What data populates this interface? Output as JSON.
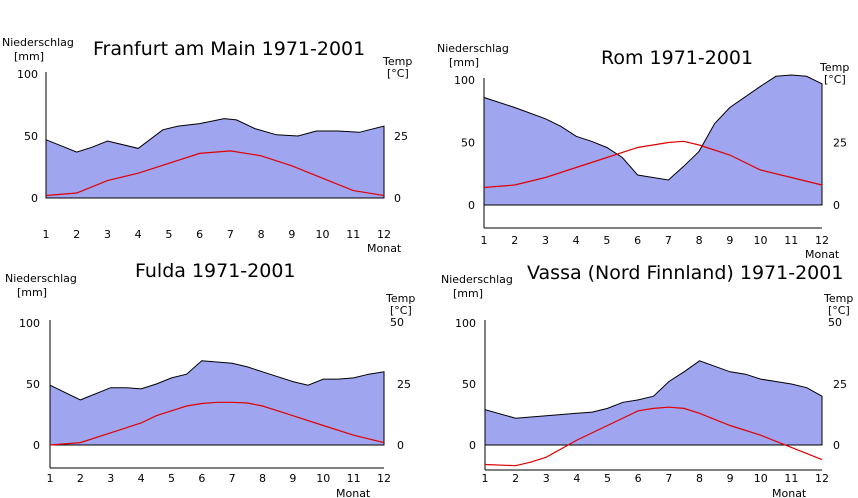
{
  "chart_data": [
    {
      "type": "area",
      "title": "Franfurt am Main  1971-2001",
      "ylabel_left": [
        "Niederschlag",
        "[mm]"
      ],
      "ylabel_right": [
        "Temp",
        "[°C]"
      ],
      "xlabel": "Monat",
      "x_ticks": [
        "1",
        "2",
        "3",
        "4",
        "5",
        "6",
        "7",
        "8",
        "9",
        "10",
        "11",
        "12"
      ],
      "yleft_ticks": [
        "0",
        "50",
        "100"
      ],
      "yright_ticks": [
        "0",
        "25"
      ],
      "yleft_lim": [
        0,
        100
      ],
      "yright_lim": [
        0,
        50
      ],
      "series": [
        {
          "kind": "precipitation",
          "x": [
            1,
            2,
            2.5,
            3,
            4,
            4.8,
            5.3,
            6,
            6.8,
            7.2,
            7.8,
            8.5,
            9.2,
            9.8,
            10.5,
            11.2,
            12
          ],
          "values": [
            47,
            37,
            41,
            46,
            40,
            55,
            58,
            60,
            64,
            63,
            56,
            51,
            50,
            54,
            54,
            53,
            58
          ]
        },
        {
          "kind": "temperature",
          "x": [
            1,
            2,
            3,
            4,
            5,
            6,
            7,
            8,
            9,
            10,
            11,
            12
          ],
          "values": [
            1,
            2,
            7,
            10,
            14,
            18,
            19,
            17,
            13,
            8,
            3,
            1
          ]
        }
      ],
      "colors": {
        "area": "#a0a5f0",
        "temp": "#e00000"
      }
    },
    {
      "type": "area",
      "title": "Rom  1971-2001",
      "ylabel_left": [
        "Niederschlag",
        "[mm]"
      ],
      "ylabel_right": [
        "Temp",
        "[°C]"
      ],
      "xlabel": "Monat",
      "x_ticks": [
        "1",
        "2",
        "3",
        "4",
        "5",
        "6",
        "7",
        "8",
        "9",
        "10",
        "11",
        "12"
      ],
      "yleft_ticks": [
        "0",
        "50",
        "100"
      ],
      "yright_ticks": [
        "0",
        "25"
      ],
      "yleft_lim": [
        0,
        100
      ],
      "yright_lim": [
        0,
        50
      ],
      "series": [
        {
          "kind": "precipitation",
          "x": [
            1,
            2,
            3,
            3.5,
            4,
            4.5,
            5,
            5.5,
            6,
            7,
            7.5,
            8,
            8.5,
            9,
            10,
            10.5,
            11,
            11.5,
            12
          ],
          "values": [
            86,
            78,
            69,
            63,
            55,
            51,
            46,
            38,
            24,
            20,
            31,
            43,
            65,
            78,
            95,
            103,
            104,
            103,
            97
          ]
        },
        {
          "kind": "temperature",
          "x": [
            1,
            2,
            3,
            4,
            5,
            6,
            7,
            7.5,
            8,
            9,
            10,
            11,
            12
          ],
          "values": [
            7,
            8,
            11,
            15,
            19,
            23,
            25,
            25.5,
            24,
            20,
            14,
            11,
            8
          ]
        }
      ],
      "colors": {
        "area": "#a0a5f0",
        "temp": "#e00000"
      }
    },
    {
      "type": "area",
      "title": "Fulda 1971-2001",
      "ylabel_left": [
        "Niederschlag",
        "[mm]"
      ],
      "ylabel_right": [
        "Temp",
        "[°C]",
        "50"
      ],
      "xlabel": "Monat",
      "x_ticks": [
        "1",
        "2",
        "3",
        "4",
        "5",
        "6",
        "7",
        "8",
        "9",
        "10",
        "11",
        "12"
      ],
      "yleft_ticks": [
        "0",
        "50",
        "100"
      ],
      "yright_ticks": [
        "0",
        "25"
      ],
      "yleft_lim": [
        0,
        100
      ],
      "yright_lim": [
        0,
        50
      ],
      "series": [
        {
          "kind": "precipitation",
          "x": [
            1,
            2,
            3,
            3.5,
            4,
            4.5,
            5,
            5.5,
            6,
            7,
            7.5,
            8,
            9,
            9.5,
            10,
            10.5,
            11,
            11.5,
            12
          ],
          "values": [
            49,
            37,
            47,
            47,
            46,
            50,
            55,
            58,
            69,
            67,
            64,
            60,
            52,
            49,
            54,
            54,
            55,
            58,
            60
          ]
        },
        {
          "kind": "temperature",
          "x": [
            1,
            2,
            3,
            4,
            4.5,
            5,
            5.5,
            6,
            6.5,
            7,
            7.5,
            8,
            8.5,
            9,
            10,
            11,
            12
          ],
          "values": [
            0,
            1,
            5,
            9,
            12,
            14,
            16,
            17,
            17.5,
            17.5,
            17.2,
            16,
            14,
            12,
            8,
            4,
            1
          ]
        }
      ],
      "colors": {
        "area": "#a0a5f0",
        "temp": "#e00000"
      }
    },
    {
      "type": "area",
      "title": "Vassa (Nord Finnland) 1971-2001",
      "ylabel_left": [
        "Niederschlag",
        "[mm]"
      ],
      "ylabel_right": [
        "Temp",
        "[°C]",
        "50"
      ],
      "xlabel": "Monat",
      "x_ticks": [
        "1",
        "2",
        "3",
        "4",
        "5",
        "6",
        "7",
        "8",
        "9",
        "10",
        "11",
        "12"
      ],
      "yleft_ticks": [
        "0",
        "50",
        "100"
      ],
      "yright_ticks": [
        "0",
        "25"
      ],
      "yleft_lim": [
        0,
        100
      ],
      "yright_lim": [
        0,
        50
      ],
      "series": [
        {
          "kind": "precipitation",
          "x": [
            1,
            2,
            3,
            4,
            4.5,
            5,
            5.5,
            6,
            6.5,
            7,
            7.5,
            8,
            9,
            9.5,
            10,
            11,
            11.5,
            12
          ],
          "values": [
            29,
            22,
            24,
            26,
            27,
            30,
            35,
            37,
            40,
            52,
            60,
            69,
            60,
            58,
            54,
            50,
            47,
            40
          ]
        },
        {
          "kind": "temperature",
          "x": [
            1,
            2,
            2.5,
            3,
            4,
            5,
            6,
            6.5,
            7,
            7.5,
            8,
            9,
            10,
            11,
            12
          ],
          "values": [
            -8,
            -8.5,
            -7,
            -5,
            2,
            8,
            14,
            15,
            15.5,
            15,
            13,
            8,
            4,
            -1,
            -6
          ]
        }
      ],
      "colors": {
        "area": "#a0a5f0",
        "temp": "#e00000"
      }
    }
  ]
}
